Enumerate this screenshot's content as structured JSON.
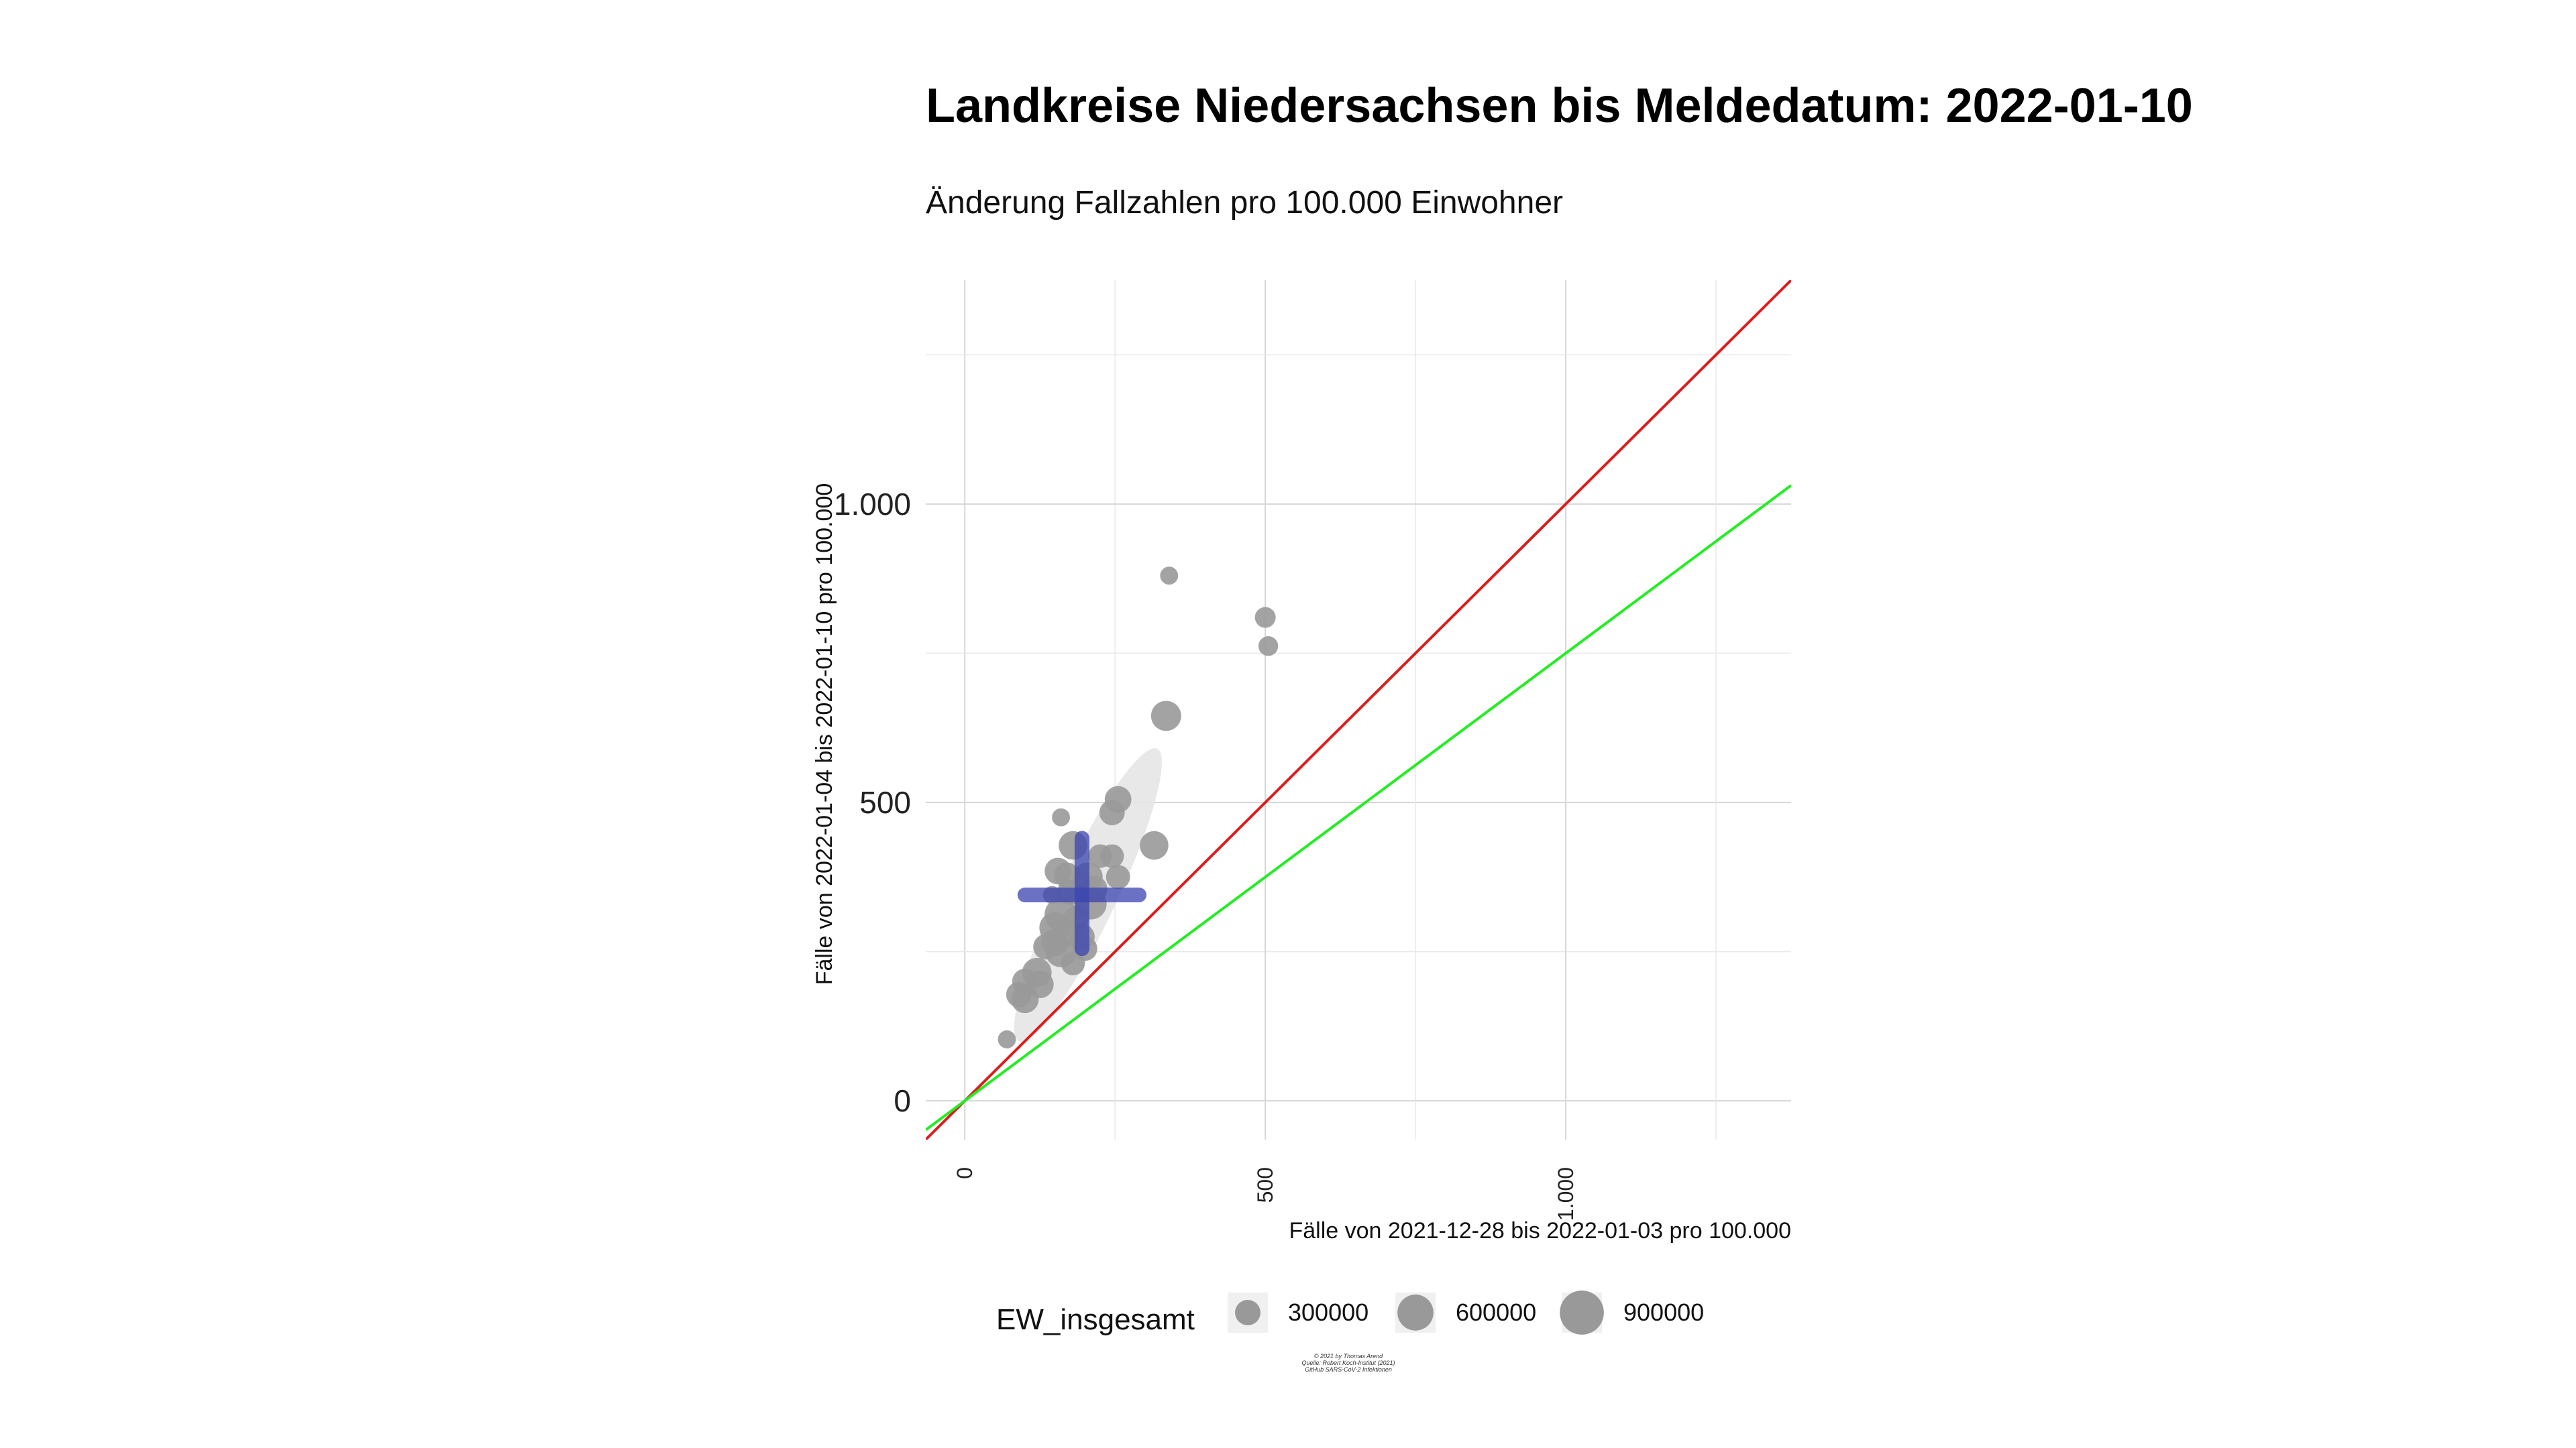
{
  "chart_data": {
    "type": "scatter",
    "title": "Landkreise Niedersachsen bis Meldedatum: 2022-01-10",
    "subtitle": "Änderung Fallzahlen pro 100.000 Einwohner",
    "xlabel": "Fälle von 2021-12-28 bis 2022-01-03 pro 100.000",
    "ylabel": "Fälle von 2022-01-04 bis 2022-01-10 pro 100.000",
    "xlim": [
      -65,
      1375
    ],
    "ylim": [
      -65,
      1375
    ],
    "x_ticks": [
      {
        "value": 0,
        "label": "0"
      },
      {
        "value": 500,
        "label": "500"
      },
      {
        "value": 1000,
        "label": "1.000"
      }
    ],
    "y_ticks": [
      {
        "value": 0,
        "label": "0"
      },
      {
        "value": 500,
        "label": "500"
      },
      {
        "value": 1000,
        "label": "1.000"
      }
    ],
    "grid": true,
    "point_color": "#999999",
    "reference_lines": [
      {
        "slope": 1.0,
        "color": "#dd1c1c"
      },
      {
        "slope": 0.75,
        "color": "#22ee22"
      }
    ],
    "ellipse": {
      "cx": 205,
      "cy": 345,
      "major_point_a": [
        320,
        590
      ],
      "major_point_b": [
        90,
        100
      ],
      "minor_half_width": 48,
      "color": "#e6e6e6"
    },
    "mean_cross": {
      "x": 195,
      "y": 345,
      "x_range": [
        100,
        290
      ],
      "y_range": [
        255,
        440
      ],
      "color": "#3a44b0"
    },
    "points": [
      {
        "x": 340,
        "y": 880,
        "pop": 150000
      },
      {
        "x": 500,
        "y": 810,
        "pop": 200000
      },
      {
        "x": 505,
        "y": 762,
        "pop": 180000
      },
      {
        "x": 335,
        "y": 645,
        "pop": 420000
      },
      {
        "x": 255,
        "y": 505,
        "pop": 330000
      },
      {
        "x": 245,
        "y": 483,
        "pop": 300000
      },
      {
        "x": 160,
        "y": 475,
        "pop": 150000
      },
      {
        "x": 315,
        "y": 428,
        "pop": 380000
      },
      {
        "x": 180,
        "y": 428,
        "pop": 380000
      },
      {
        "x": 225,
        "y": 410,
        "pop": 260000
      },
      {
        "x": 245,
        "y": 410,
        "pop": 260000
      },
      {
        "x": 255,
        "y": 375,
        "pop": 270000
      },
      {
        "x": 155,
        "y": 385,
        "pop": 330000
      },
      {
        "x": 170,
        "y": 378,
        "pop": 300000
      },
      {
        "x": 205,
        "y": 375,
        "pop": 400000
      },
      {
        "x": 215,
        "y": 355,
        "pop": 330000
      },
      {
        "x": 145,
        "y": 345,
        "pop": 150000
      },
      {
        "x": 175,
        "y": 350,
        "pop": 300000
      },
      {
        "x": 210,
        "y": 330,
        "pop": 450000
      },
      {
        "x": 160,
        "y": 312,
        "pop": 500000
      },
      {
        "x": 185,
        "y": 305,
        "pop": 300000
      },
      {
        "x": 150,
        "y": 290,
        "pop": 450000
      },
      {
        "x": 170,
        "y": 280,
        "pop": 350000
      },
      {
        "x": 195,
        "y": 275,
        "pop": 300000
      },
      {
        "x": 150,
        "y": 265,
        "pop": 350000
      },
      {
        "x": 160,
        "y": 250,
        "pop": 450000
      },
      {
        "x": 135,
        "y": 258,
        "pop": 300000
      },
      {
        "x": 200,
        "y": 255,
        "pop": 280000
      },
      {
        "x": 180,
        "y": 230,
        "pop": 260000
      },
      {
        "x": 120,
        "y": 215,
        "pop": 400000
      },
      {
        "x": 125,
        "y": 195,
        "pop": 350000
      },
      {
        "x": 100,
        "y": 200,
        "pop": 300000
      },
      {
        "x": 90,
        "y": 178,
        "pop": 300000
      },
      {
        "x": 100,
        "y": 170,
        "pop": 350000
      },
      {
        "x": 70,
        "y": 103,
        "pop": 150000
      }
    ],
    "legend": {
      "title": "EW_insgesamt",
      "position": "bottom",
      "items": [
        {
          "label": "300000",
          "pop": 300000
        },
        {
          "label": "600000",
          "pop": 600000
        },
        {
          "label": "900000",
          "pop": 900000
        }
      ]
    },
    "caption": [
      "© 2021 by Thomas Arend",
      "Quelle: Robert Koch-Institut (2021)",
      "GitHub SARS-CoV-2 Infektionen"
    ]
  }
}
